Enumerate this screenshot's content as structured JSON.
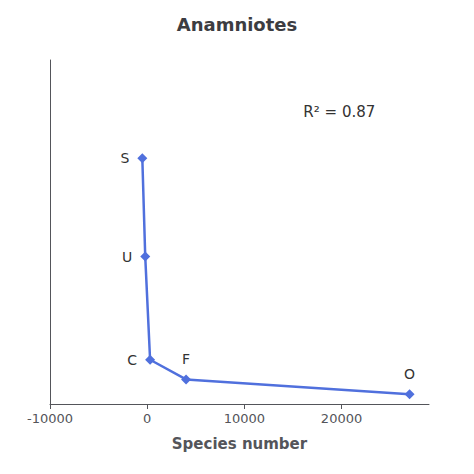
{
  "chart_data": {
    "type": "line",
    "title": "Anamniotes",
    "xlabel": "Species number",
    "x": [
      -500,
      -200,
      300,
      4000,
      27000
    ],
    "values": [
      4.5,
      3.5,
      2.45,
      2.25,
      2.1
    ],
    "labels": [
      "S",
      "U",
      "C",
      "F",
      "O"
    ],
    "annotations": [
      "R² = 0.87"
    ],
    "xlim": [
      -10000,
      29000
    ],
    "xticks": [
      -10000,
      0,
      10000,
      20000
    ],
    "ylim": [
      2.0,
      5.5
    ],
    "tick_labels": "x",
    "grid": false,
    "marker": "diamond"
  }
}
